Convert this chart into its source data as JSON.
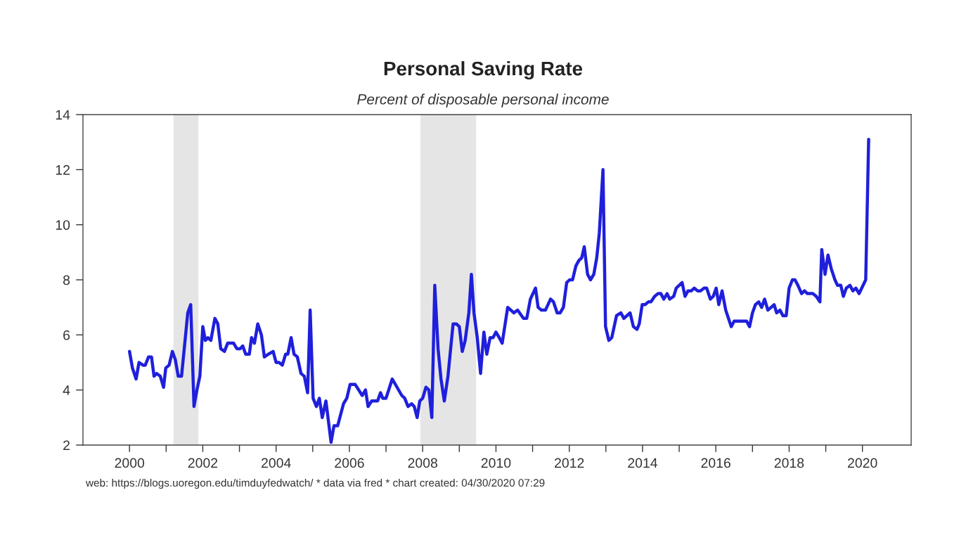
{
  "chart_data": {
    "type": "line",
    "title": "Personal Saving Rate",
    "subtitle": "Percent of disposable personal income",
    "annotations": [
      "web: https://blogs.uoregon.edu/timduyfedwatch/ * data via fred * chart created: 04/30/2020 07:29"
    ],
    "series": [
      {
        "color": "#1f1fdc",
        "x": [
          2000.0,
          2000.08,
          2000.18,
          2000.26,
          2000.37,
          2000.43,
          2000.52,
          2000.6,
          2000.67,
          2000.74,
          2000.84,
          2000.93,
          2000.99,
          2001.08,
          2001.17,
          2001.25,
          2001.33,
          2001.42,
          2001.59,
          2001.67,
          2001.76,
          2001.84,
          2001.92,
          2002.0,
          2002.07,
          2002.14,
          2002.22,
          2002.33,
          2002.41,
          2002.49,
          2002.59,
          2002.68,
          2002.84,
          2002.93,
          2003.02,
          2003.09,
          2003.17,
          2003.27,
          2003.33,
          2003.41,
          2003.5,
          2003.6,
          2003.68,
          2003.79,
          2003.92,
          2004.0,
          2004.08,
          2004.17,
          2004.26,
          2004.32,
          2004.41,
          2004.49,
          2004.58,
          2004.68,
          2004.77,
          2004.86,
          2004.93,
          2005.01,
          2005.1,
          2005.18,
          2005.26,
          2005.36,
          2005.5,
          2005.58,
          2005.68,
          2005.84,
          2005.93,
          2006.02,
          2006.16,
          2006.35,
          2006.44,
          2006.51,
          2006.61,
          2006.77,
          2006.85,
          2006.91,
          2007.0,
          2007.17,
          2007.43,
          2007.51,
          2007.6,
          2007.7,
          2007.77,
          2007.85,
          2007.92,
          2008.0,
          2008.09,
          2008.17,
          2008.25,
          2008.33,
          2008.42,
          2008.5,
          2008.59,
          2008.69,
          2008.83,
          2008.92,
          2009.0,
          2009.08,
          2009.16,
          2009.26,
          2009.33,
          2009.4,
          2009.49,
          2009.58,
          2009.67,
          2009.75,
          2009.84,
          2009.92,
          2010.0,
          2010.09,
          2010.17,
          2010.32,
          2010.49,
          2010.59,
          2010.75,
          2010.84,
          2010.94,
          2011.08,
          2011.15,
          2011.24,
          2011.35,
          2011.49,
          2011.57,
          2011.67,
          2011.75,
          2011.84,
          2011.93,
          2012.01,
          2012.09,
          2012.18,
          2012.26,
          2012.34,
          2012.41,
          2012.5,
          2012.58,
          2012.67,
          2012.75,
          2012.82,
          2012.92,
          2012.99,
          2013.08,
          2013.16,
          2013.29,
          2013.41,
          2013.49,
          2013.66,
          2013.75,
          2013.85,
          2013.91,
          2013.99,
          2014.07,
          2014.16,
          2014.23,
          2014.33,
          2014.42,
          2014.5,
          2014.58,
          2014.67,
          2014.74,
          2014.85,
          2014.92,
          2015.08,
          2015.16,
          2015.24,
          2015.33,
          2015.41,
          2015.5,
          2015.58,
          2015.68,
          2015.75,
          2015.85,
          2015.93,
          2016.01,
          2016.08,
          2016.17,
          2016.27,
          2016.42,
          2016.5,
          2016.84,
          2016.92,
          2017.0,
          2017.08,
          2017.17,
          2017.25,
          2017.33,
          2017.42,
          2017.51,
          2017.59,
          2017.66,
          2017.75,
          2017.83,
          2017.92,
          2018.0,
          2018.09,
          2018.16,
          2018.24,
          2018.34,
          2018.42,
          2018.5,
          2018.65,
          2018.74,
          2018.84,
          2018.89,
          2018.98,
          2019.06,
          2019.15,
          2019.25,
          2019.32,
          2019.41,
          2019.48,
          2019.56,
          2019.66,
          2019.74,
          2019.82,
          2019.91,
          2020.09,
          2020.17
        ],
        "values": [
          5.4,
          4.8,
          4.4,
          5.0,
          4.9,
          4.9,
          5.2,
          5.2,
          4.5,
          4.6,
          4.5,
          4.1,
          4.8,
          4.9,
          5.4,
          5.1,
          4.5,
          4.5,
          6.8,
          7.1,
          3.4,
          4.0,
          4.5,
          6.3,
          5.8,
          5.9,
          5.8,
          6.6,
          6.4,
          5.5,
          5.4,
          5.7,
          5.7,
          5.5,
          5.5,
          5.6,
          5.3,
          5.3,
          5.9,
          5.7,
          6.4,
          6.0,
          5.2,
          5.3,
          5.4,
          5.0,
          5.0,
          4.9,
          5.3,
          5.3,
          5.9,
          5.3,
          5.2,
          4.6,
          4.5,
          3.9,
          6.9,
          3.7,
          3.4,
          3.7,
          3.0,
          3.6,
          2.1,
          2.7,
          2.7,
          3.5,
          3.7,
          4.2,
          4.2,
          3.8,
          4.0,
          3.4,
          3.6,
          3.6,
          3.9,
          3.7,
          3.7,
          4.4,
          3.8,
          3.7,
          3.4,
          3.5,
          3.4,
          3.0,
          3.6,
          3.7,
          4.1,
          4.0,
          3.0,
          7.8,
          5.5,
          4.4,
          3.6,
          4.5,
          6.4,
          6.4,
          6.3,
          5.4,
          5.8,
          6.8,
          8.2,
          6.8,
          5.9,
          4.6,
          6.1,
          5.3,
          5.9,
          5.9,
          6.1,
          5.9,
          5.7,
          7.0,
          6.8,
          6.9,
          6.6,
          6.6,
          7.3,
          7.7,
          7.0,
          6.9,
          6.9,
          7.3,
          7.2,
          6.8,
          6.8,
          7.0,
          7.9,
          8.0,
          8.0,
          8.5,
          8.7,
          8.8,
          9.2,
          8.2,
          8.0,
          8.2,
          8.8,
          9.7,
          12.0,
          6.3,
          5.8,
          5.9,
          6.7,
          6.8,
          6.6,
          6.8,
          6.3,
          6.2,
          6.4,
          7.1,
          7.1,
          7.2,
          7.2,
          7.4,
          7.5,
          7.5,
          7.3,
          7.5,
          7.3,
          7.4,
          7.7,
          7.9,
          7.4,
          7.6,
          7.6,
          7.7,
          7.6,
          7.6,
          7.7,
          7.7,
          7.3,
          7.4,
          7.7,
          7.1,
          7.6,
          6.9,
          6.3,
          6.5,
          6.5,
          6.3,
          6.8,
          7.1,
          7.2,
          7.0,
          7.3,
          6.9,
          7.0,
          7.1,
          6.8,
          6.9,
          6.7,
          6.7,
          7.7,
          8.0,
          8.0,
          7.8,
          7.5,
          7.6,
          7.5,
          7.5,
          7.4,
          7.2,
          9.1,
          8.2,
          8.9,
          8.4,
          8.0,
          7.8,
          7.8,
          7.4,
          7.7,
          7.8,
          7.6,
          7.7,
          7.5,
          8.0,
          13.1
        ]
      }
    ],
    "xlim": [
      1998.73,
      2021.33
    ],
    "xticks": [
      2000,
      {
        "value": 2001,
        "label": null
      },
      2002,
      {
        "value": 2003,
        "label": null
      },
      2004,
      {
        "value": 2005,
        "label": null
      },
      2006,
      {
        "value": 2007,
        "label": null
      },
      2008,
      {
        "value": 2009,
        "label": null
      },
      2010,
      {
        "value": 2011,
        "label": null
      },
      2012,
      {
        "value": 2013,
        "label": null
      },
      2014,
      {
        "value": 2015,
        "label": null
      },
      2016,
      {
        "value": 2017,
        "label": null
      },
      2018,
      {
        "value": 2019,
        "label": null
      },
      2020
    ],
    "ylim": [
      2,
      14
    ],
    "yticks": [
      2,
      4,
      6,
      8,
      10,
      12,
      14
    ],
    "bands": [
      {
        "axis": "x",
        "from": 2001.2,
        "to": 2001.88,
        "label": null,
        "color": "#e5e5e5"
      },
      {
        "axis": "x",
        "from": 2007.94,
        "to": 2009.46,
        "label": null,
        "color": "#e5e5e5"
      }
    ],
    "grid": false,
    "legend": false,
    "marker": "none",
    "line_style": "solid"
  }
}
